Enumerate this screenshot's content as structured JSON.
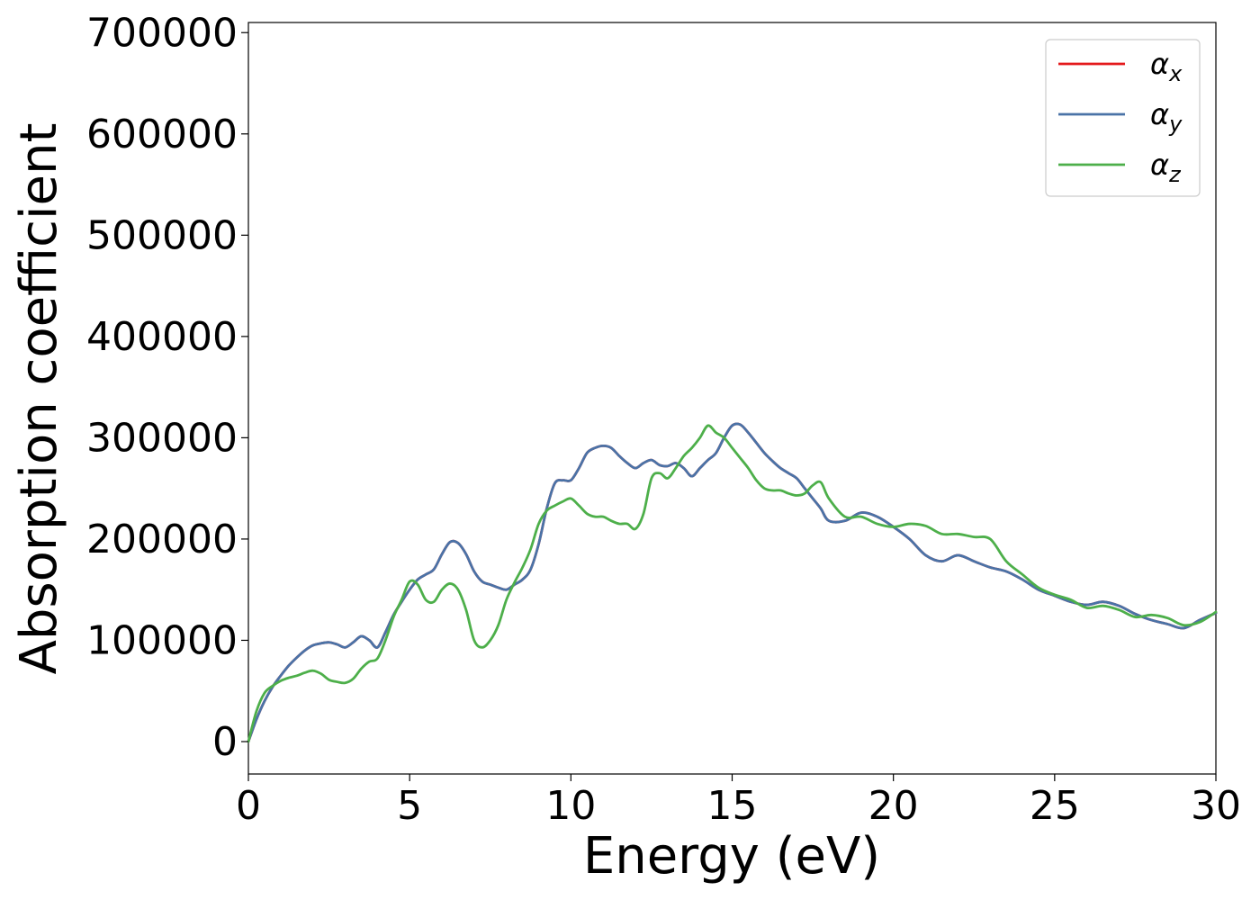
{
  "chart_data": {
    "type": "line",
    "xlabel": "Energy (eV)",
    "ylabel": "Absorption coefficient",
    "xlim": [
      0,
      30
    ],
    "ylim": [
      -32000,
      710000
    ],
    "xticks": [
      0,
      5,
      10,
      15,
      20,
      25,
      30
    ],
    "xtick_labels": [
      "0",
      "5",
      "10",
      "15",
      "20",
      "25",
      "30"
    ],
    "yticks": [
      0,
      100000,
      200000,
      300000,
      400000,
      500000,
      600000,
      700000
    ],
    "ytick_labels": [
      "0",
      "100000",
      "200000",
      "300000",
      "400000",
      "500000",
      "600000",
      "700000"
    ],
    "grid": false,
    "legend_position": "top-right",
    "series": [
      {
        "name": "αx",
        "base": "α",
        "sub": "x",
        "color": "#e41a1c",
        "x": [
          0,
          0.25,
          0.5,
          0.75,
          1,
          1.25,
          1.5,
          1.75,
          2,
          2.25,
          2.5,
          2.75,
          3,
          3.25,
          3.5,
          3.75,
          4,
          4.25,
          4.5,
          4.75,
          5,
          5.25,
          5.5,
          5.75,
          6,
          6.25,
          6.5,
          6.75,
          7,
          7.25,
          7.5,
          7.75,
          8,
          8.25,
          8.5,
          8.75,
          9,
          9.25,
          9.5,
          9.75,
          10,
          10.25,
          10.5,
          10.75,
          11,
          11.25,
          11.5,
          11.75,
          12,
          12.25,
          12.5,
          12.75,
          13,
          13.25,
          13.5,
          13.75,
          14,
          14.25,
          14.5,
          14.75,
          15,
          15.25,
          15.5,
          15.75,
          16,
          16.25,
          16.5,
          16.75,
          17,
          17.25,
          17.5,
          17.75,
          18,
          18.5,
          19,
          19.5,
          20,
          20.5,
          21,
          21.5,
          22,
          22.5,
          23,
          23.5,
          24,
          24.5,
          25,
          25.5,
          26,
          26.5,
          27,
          27.5,
          28,
          28.5,
          29,
          29.5,
          30
        ],
        "y": [
          0,
          22000,
          40000,
          54000,
          65000,
          75000,
          83000,
          90000,
          95000,
          97000,
          98000,
          96000,
          93000,
          98000,
          104000,
          100000,
          93000,
          108000,
          125000,
          138000,
          150000,
          160000,
          165000,
          170000,
          185000,
          197000,
          196000,
          185000,
          168000,
          158000,
          155000,
          152000,
          150000,
          155000,
          160000,
          170000,
          195000,
          230000,
          255000,
          258000,
          258000,
          270000,
          285000,
          290000,
          292000,
          290000,
          282000,
          275000,
          270000,
          275000,
          278000,
          273000,
          272000,
          275000,
          270000,
          262000,
          270000,
          278000,
          285000,
          300000,
          312000,
          313000,
          305000,
          295000,
          285000,
          277000,
          270000,
          265000,
          260000,
          250000,
          240000,
          230000,
          218000,
          218000,
          226000,
          222000,
          212000,
          200000,
          184000,
          178000,
          184000,
          178000,
          172000,
          168000,
          160000,
          150000,
          144000,
          138000,
          135000,
          138000,
          134000,
          126000,
          120000,
          116000,
          112000,
          120000,
          127000
        ]
      },
      {
        "name": "αy",
        "base": "α",
        "sub": "y",
        "color": "#4a73a7",
        "x": [
          0,
          0.25,
          0.5,
          0.75,
          1,
          1.25,
          1.5,
          1.75,
          2,
          2.25,
          2.5,
          2.75,
          3,
          3.25,
          3.5,
          3.75,
          4,
          4.25,
          4.5,
          4.75,
          5,
          5.25,
          5.5,
          5.75,
          6,
          6.25,
          6.5,
          6.75,
          7,
          7.25,
          7.5,
          7.75,
          8,
          8.25,
          8.5,
          8.75,
          9,
          9.25,
          9.5,
          9.75,
          10,
          10.25,
          10.5,
          10.75,
          11,
          11.25,
          11.5,
          11.75,
          12,
          12.25,
          12.5,
          12.75,
          13,
          13.25,
          13.5,
          13.75,
          14,
          14.25,
          14.5,
          14.75,
          15,
          15.25,
          15.5,
          15.75,
          16,
          16.25,
          16.5,
          16.75,
          17,
          17.25,
          17.5,
          17.75,
          18,
          18.5,
          19,
          19.5,
          20,
          20.5,
          21,
          21.5,
          22,
          22.5,
          23,
          23.5,
          24,
          24.5,
          25,
          25.5,
          26,
          26.5,
          27,
          27.5,
          28,
          28.5,
          29,
          29.5,
          30
        ],
        "y": [
          0,
          22000,
          40000,
          54000,
          65000,
          75000,
          83000,
          90000,
          95000,
          97000,
          98000,
          96000,
          93000,
          98000,
          104000,
          100000,
          93000,
          108000,
          125000,
          138000,
          150000,
          160000,
          165000,
          170000,
          185000,
          197000,
          196000,
          185000,
          168000,
          158000,
          155000,
          152000,
          150000,
          155000,
          160000,
          170000,
          195000,
          230000,
          255000,
          258000,
          258000,
          270000,
          285000,
          290000,
          292000,
          290000,
          282000,
          275000,
          270000,
          275000,
          278000,
          273000,
          272000,
          275000,
          270000,
          262000,
          270000,
          278000,
          285000,
          300000,
          312000,
          313000,
          305000,
          295000,
          285000,
          277000,
          270000,
          265000,
          260000,
          250000,
          240000,
          230000,
          218000,
          218000,
          226000,
          222000,
          212000,
          200000,
          184000,
          178000,
          184000,
          178000,
          172000,
          168000,
          160000,
          150000,
          144000,
          138000,
          135000,
          138000,
          134000,
          126000,
          120000,
          116000,
          112000,
          120000,
          127000
        ]
      },
      {
        "name": "αz",
        "base": "α",
        "sub": "z",
        "color": "#4daf4a",
        "x": [
          0,
          0.25,
          0.5,
          0.75,
          1,
          1.25,
          1.5,
          1.75,
          2,
          2.25,
          2.5,
          2.75,
          3,
          3.25,
          3.5,
          3.75,
          4,
          4.25,
          4.5,
          4.75,
          5,
          5.25,
          5.5,
          5.75,
          6,
          6.25,
          6.5,
          6.75,
          7,
          7.25,
          7.5,
          7.75,
          8,
          8.25,
          8.5,
          8.75,
          9,
          9.25,
          9.5,
          9.75,
          10,
          10.25,
          10.5,
          10.75,
          11,
          11.25,
          11.5,
          11.75,
          12,
          12.25,
          12.5,
          12.75,
          13,
          13.25,
          13.5,
          13.75,
          14,
          14.25,
          14.5,
          14.75,
          15,
          15.25,
          15.5,
          15.75,
          16,
          16.25,
          16.5,
          16.75,
          17,
          17.25,
          17.5,
          17.75,
          18,
          18.5,
          19,
          19.5,
          20,
          20.5,
          21,
          21.5,
          22,
          22.5,
          23,
          23.5,
          24,
          24.5,
          25,
          25.5,
          26,
          26.5,
          27,
          27.5,
          28,
          28.5,
          29,
          29.5,
          30
        ],
        "y": [
          0,
          30000,
          48000,
          55000,
          60000,
          63000,
          65000,
          68000,
          70000,
          67000,
          61000,
          59000,
          58000,
          62000,
          72000,
          79000,
          82000,
          100000,
          123000,
          140000,
          158000,
          155000,
          140000,
          138000,
          150000,
          156000,
          150000,
          130000,
          100000,
          93000,
          100000,
          115000,
          140000,
          157000,
          172000,
          190000,
          215000,
          228000,
          233000,
          237000,
          240000,
          233000,
          225000,
          222000,
          222000,
          218000,
          215000,
          215000,
          210000,
          225000,
          260000,
          265000,
          260000,
          270000,
          282000,
          290000,
          300000,
          312000,
          305000,
          300000,
          290000,
          280000,
          270000,
          258000,
          250000,
          248000,
          248000,
          245000,
          243000,
          245000,
          253000,
          256000,
          240000,
          222000,
          222000,
          215000,
          212000,
          215000,
          213000,
          205000,
          205000,
          202000,
          200000,
          178000,
          165000,
          152000,
          145000,
          140000,
          132000,
          134000,
          130000,
          123000,
          125000,
          122000,
          115000,
          118000,
          128000
        ]
      }
    ]
  }
}
